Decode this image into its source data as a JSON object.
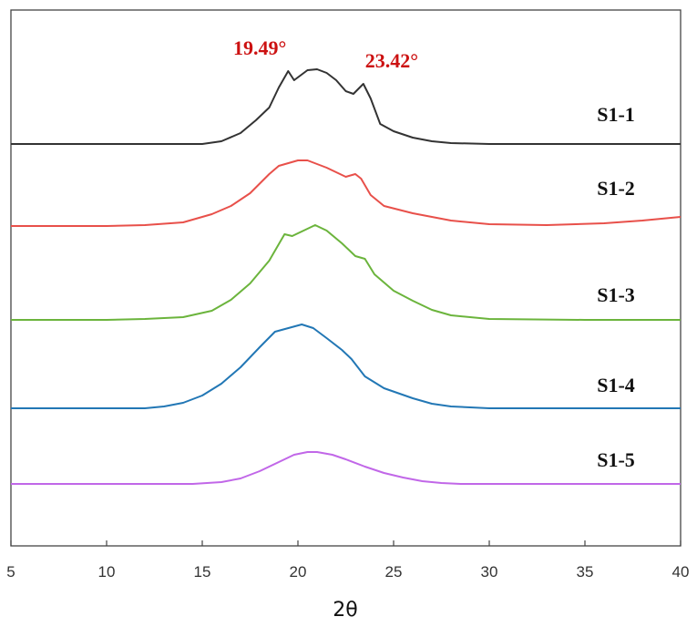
{
  "chart_data": {
    "type": "line",
    "title": "",
    "xlabel": "2θ",
    "ylabel": "",
    "xlim": [
      5,
      40
    ],
    "xticks": [
      5,
      10,
      15,
      20,
      25,
      30,
      35,
      40
    ],
    "yticks_shown": false,
    "grid": false,
    "series": [
      {
        "name": "S1-1",
        "color": "#333333",
        "x": [
          5,
          15,
          16,
          17,
          17.8,
          18.5,
          19,
          19.49,
          19.8,
          20.5,
          21,
          21.5,
          22,
          22.5,
          22.9,
          23.42,
          23.8,
          24.3,
          25,
          26,
          27,
          28,
          30,
          35,
          40
        ],
        "y": [
          0,
          0,
          3,
          12,
          26,
          40,
          62,
          80,
          70,
          81,
          82,
          78,
          70,
          58,
          55,
          66,
          50,
          22,
          14,
          7,
          3,
          1,
          0,
          0,
          0
        ]
      },
      {
        "name": "S1-2",
        "color": "#e8504a",
        "x": [
          5,
          10,
          12,
          14,
          15.5,
          16.5,
          17.5,
          18.5,
          19,
          20,
          20.5,
          21.5,
          22.5,
          23,
          23.3,
          23.8,
          24.5,
          26,
          28,
          30,
          33,
          36,
          38,
          40
        ],
        "y": [
          0,
          0,
          1,
          4,
          13,
          22,
          36,
          57,
          66,
          72,
          72,
          64,
          54,
          57,
          52,
          34,
          22,
          14,
          6,
          2,
          1,
          3,
          6,
          10
        ]
      },
      {
        "name": "S1-3",
        "color": "#6bb43c",
        "x": [
          5,
          10,
          12,
          14,
          15.5,
          16.5,
          17.5,
          18.5,
          19.3,
          19.7,
          20.3,
          20.9,
          21.5,
          22.3,
          23,
          23.5,
          24,
          25,
          26,
          27,
          28,
          30,
          35,
          40
        ],
        "y": [
          0,
          0,
          1,
          3,
          10,
          22,
          40,
          65,
          94,
          92,
          98,
          104,
          98,
          84,
          70,
          67,
          50,
          32,
          21,
          11,
          5,
          1,
          0,
          0
        ]
      },
      {
        "name": "S1-4",
        "color": "#2277b5",
        "x": [
          5,
          12,
          13,
          14,
          15,
          16,
          17,
          18,
          18.8,
          19.5,
          20.2,
          20.8,
          21.5,
          22.3,
          22.8,
          23.5,
          24.5,
          26,
          27,
          28,
          30,
          35,
          40
        ],
        "y": [
          0,
          0,
          2,
          6,
          14,
          27,
          45,
          67,
          84,
          88,
          92,
          88,
          77,
          64,
          54,
          35,
          22,
          11,
          5,
          2,
          0,
          0,
          0
        ]
      },
      {
        "name": "S1-5",
        "color": "#c167e8",
        "x": [
          5,
          14.5,
          16,
          17,
          18,
          19,
          19.8,
          20.5,
          21,
          21.8,
          22.5,
          23.5,
          24.5,
          25.5,
          26.5,
          27.5,
          28.5,
          30,
          35,
          40
        ],
        "y": [
          0,
          0,
          2,
          6,
          14,
          24,
          32,
          35,
          35,
          32,
          27,
          19,
          12,
          7,
          3,
          1,
          0,
          0,
          0,
          0
        ]
      }
    ],
    "annotations": [
      {
        "text": "19.49°",
        "x": 19.49,
        "series": "S1-1",
        "color": "#cc1111"
      },
      {
        "text": "23.42°",
        "x": 23.42,
        "series": "S1-1",
        "color": "#cc1111"
      }
    ]
  }
}
